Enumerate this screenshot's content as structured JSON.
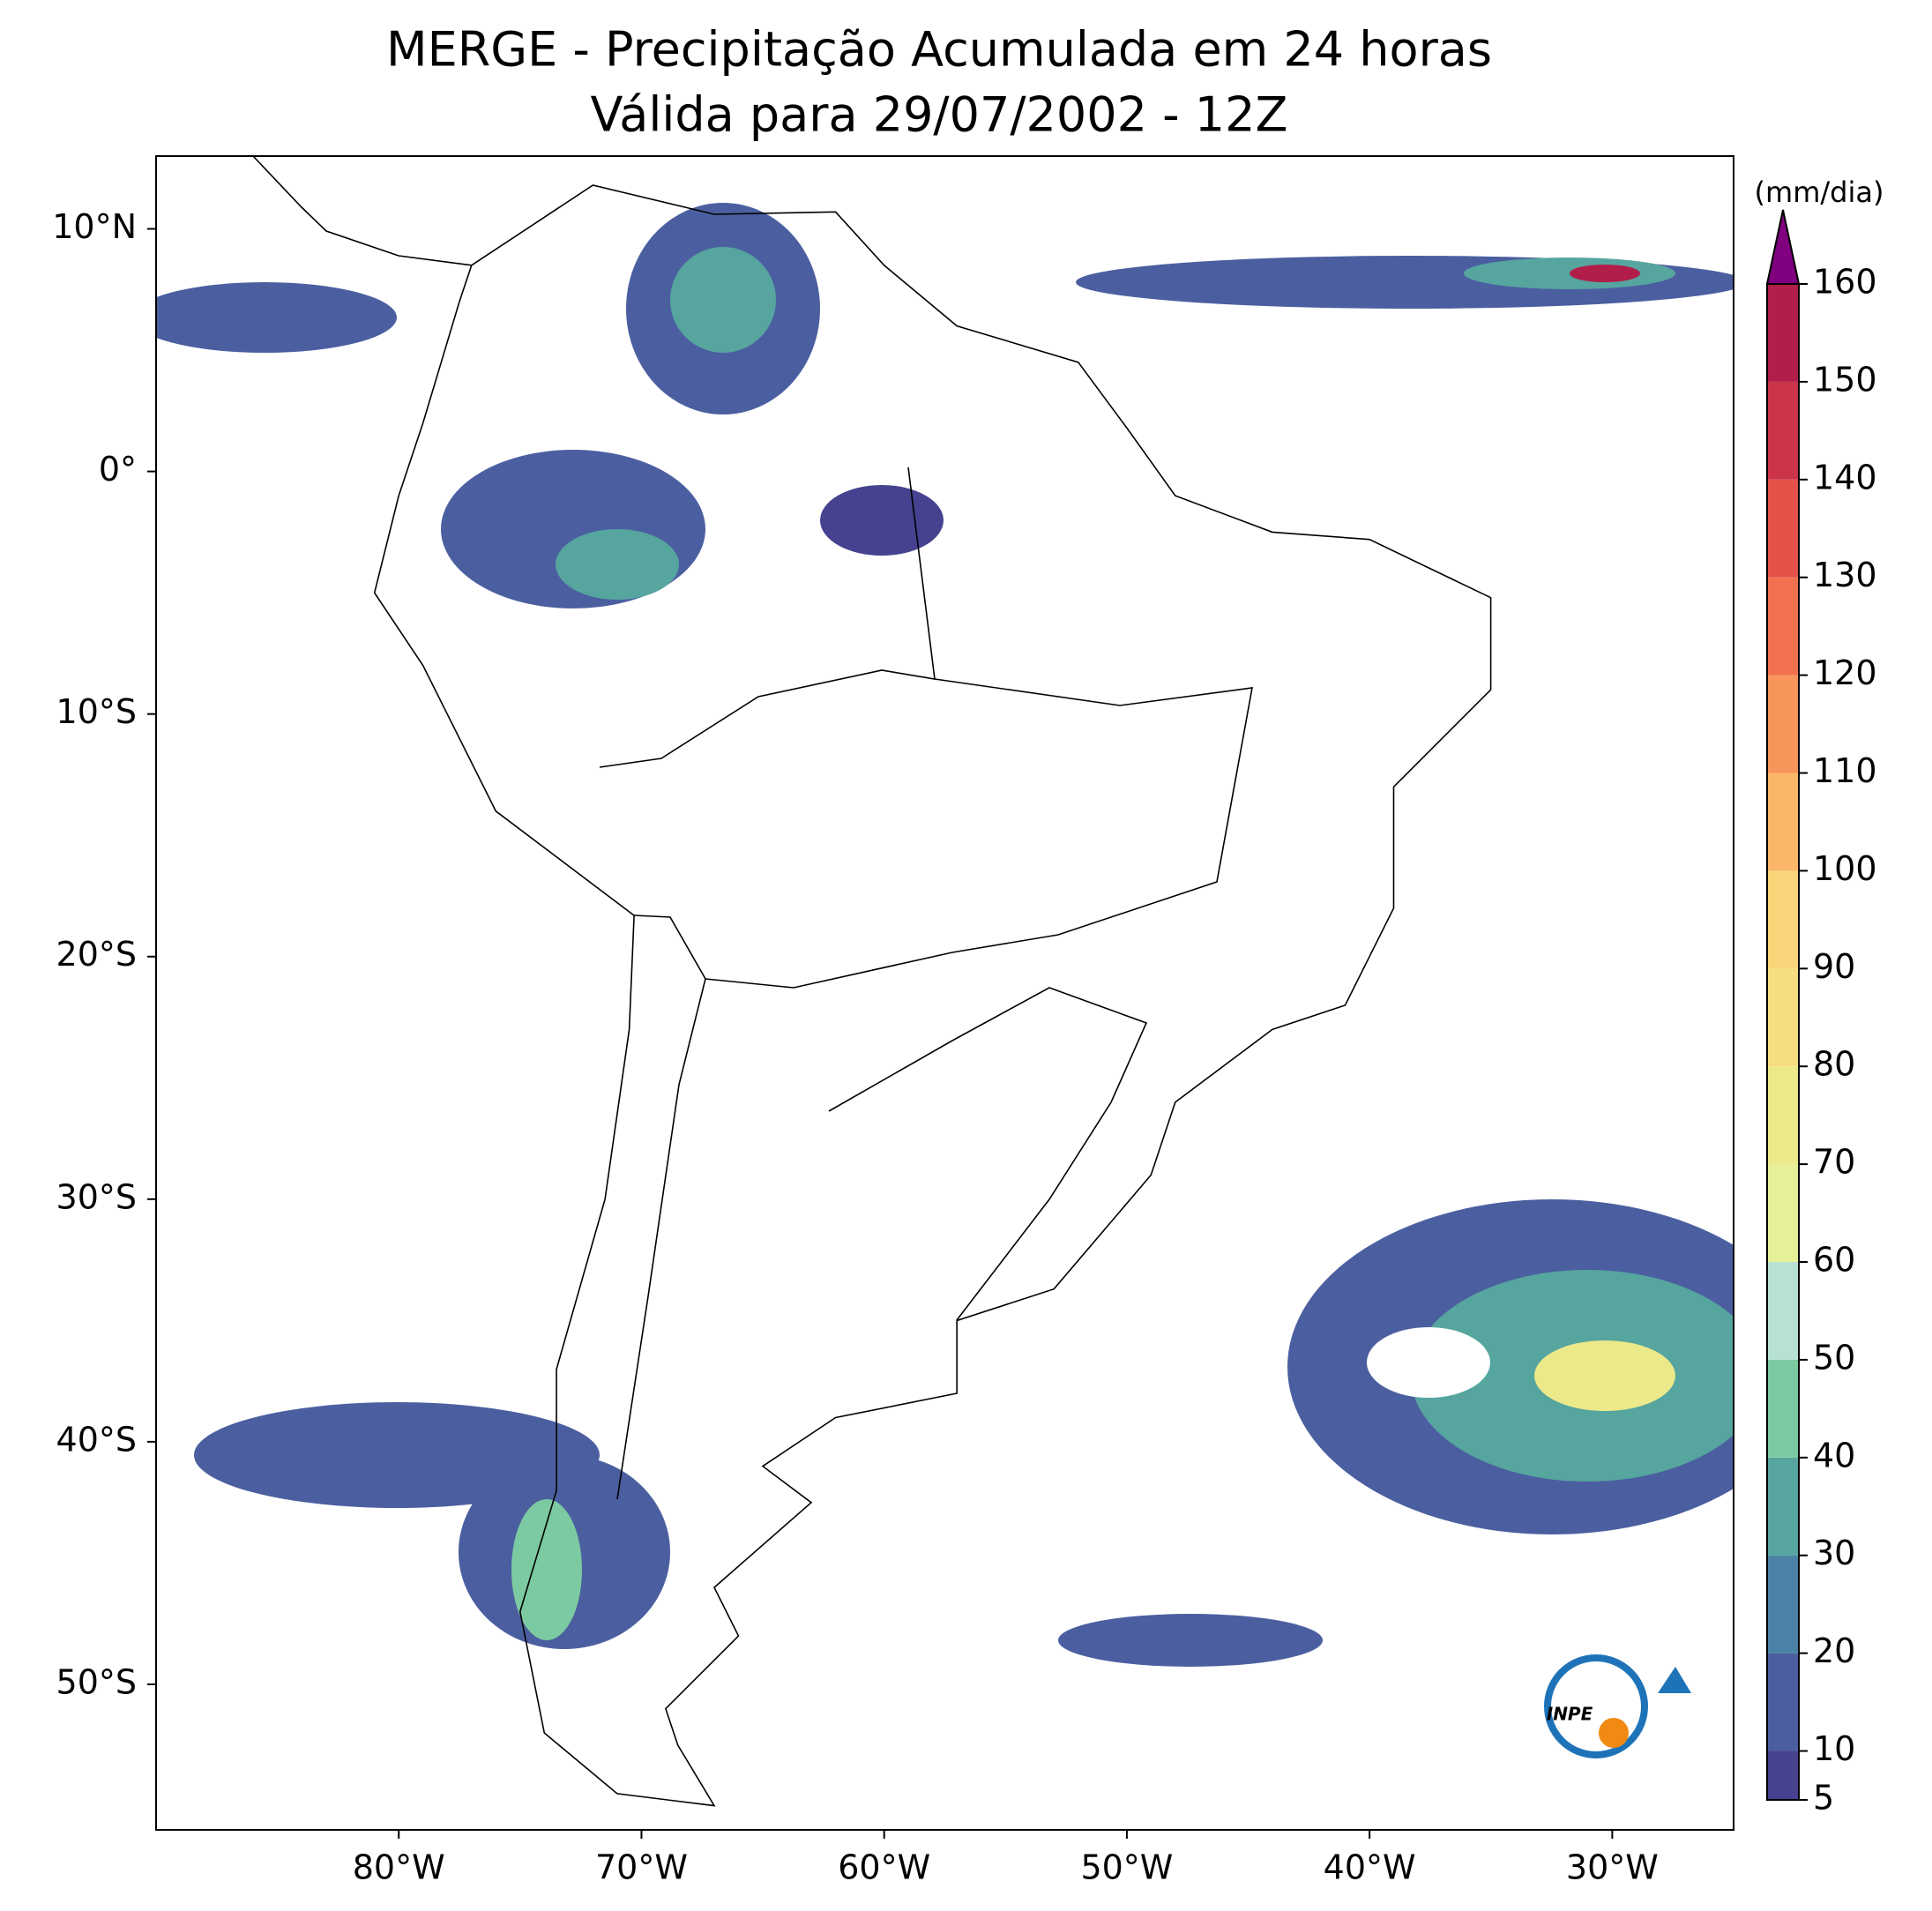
{
  "title": [
    "MERGE - Precipitação Acumulada em 24 horas",
    "Válida para 29/07/2002 - 12Z"
  ],
  "map": {
    "lonlim": [
      -90,
      -25
    ],
    "latlim": [
      -56,
      13
    ],
    "xticks": [
      {
        "value": -80,
        "label": "80°W"
      },
      {
        "value": -70,
        "label": "70°W"
      },
      {
        "value": -60,
        "label": "60°W"
      },
      {
        "value": -50,
        "label": "50°W"
      },
      {
        "value": -40,
        "label": "40°W"
      },
      {
        "value": -30,
        "label": "30°W"
      }
    ],
    "yticks": [
      {
        "value": 10,
        "label": "10°N"
      },
      {
        "value": 0,
        "label": "0°"
      },
      {
        "value": -10,
        "label": "10°S"
      },
      {
        "value": -20,
        "label": "20°S"
      },
      {
        "value": -30,
        "label": "30°S"
      },
      {
        "value": -40,
        "label": "40°S"
      },
      {
        "value": -50,
        "label": "50°S"
      }
    ]
  },
  "colorbar": {
    "label": "(mm/dia)",
    "lim": [
      5,
      160
    ],
    "ticks": [
      5,
      10,
      20,
      30,
      40,
      50,
      60,
      70,
      80,
      90,
      100,
      110,
      120,
      130,
      140,
      150,
      160
    ],
    "colors": [
      "#46428f",
      "#4b5fa0",
      "#4c82a6",
      "#56a59f",
      "#7ccaa2",
      "#b7e2d3",
      "#e6f096",
      "#ece98a",
      "#f5de80",
      "#fad579",
      "#fbb66a",
      "#f8955a",
      "#f2714f",
      "#e4524a",
      "#cc344a",
      "#b21e4a"
    ],
    "extend_color": "#800080"
  },
  "logo": "INPE"
}
